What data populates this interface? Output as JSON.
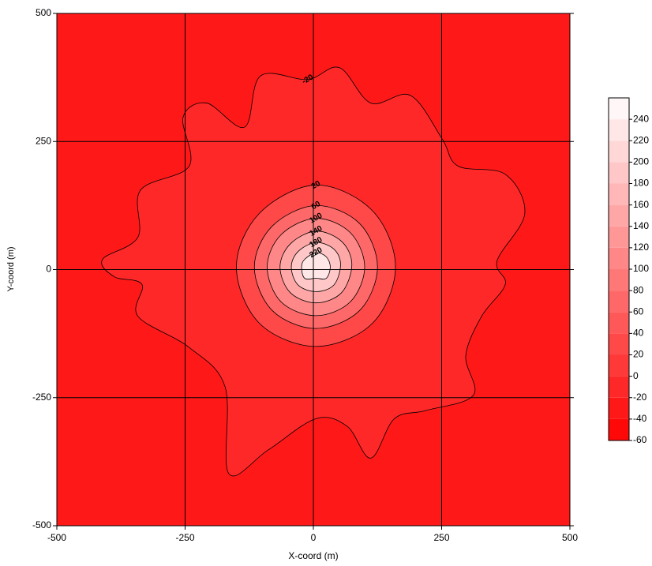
{
  "chart_data": {
    "type": "contour",
    "xlabel": "X-coord (m)",
    "ylabel": "Y-coord (m)",
    "xlim": [
      -500,
      500
    ],
    "ylim": [
      -500,
      500
    ],
    "xticks": [
      -500,
      -250,
      0,
      250,
      500
    ],
    "yticks": [
      -500,
      -250,
      0,
      250,
      500
    ],
    "grid": true,
    "colormap": [
      "#ff0000",
      "#ffffff"
    ],
    "clim": [
      -60,
      260
    ],
    "levels": [
      -60,
      -40,
      -20,
      0,
      20,
      40,
      60,
      80,
      100,
      120,
      140,
      160,
      180,
      200,
      220,
      240
    ],
    "background_level": -40,
    "contours": [
      {
        "level": -20,
        "x": [
          -411,
          -342,
          -337,
          -242,
          -254,
          -208,
          -134,
          -103,
          -11,
          51,
          112,
          189,
          251,
          282,
          374,
          412,
          358,
          374,
          328,
          297,
          312,
          220,
          158,
          112,
          66,
          5,
          -88,
          -165,
          -172,
          -242,
          -342,
          -334,
          -388
        ],
        "y": [
          20,
          63,
          155,
          202,
          297,
          325,
          278,
          378,
          371,
          394,
          325,
          340,
          255,
          202,
          186,
          109,
          17,
          -29,
          -91,
          -168,
          -245,
          -275,
          -291,
          -368,
          -306,
          -291,
          -352,
          -398,
          -229,
          -152,
          -91,
          -29,
          -14
        ]
      },
      {
        "level": 20,
        "x": [
          160,
          115,
          5,
          -105,
          -150,
          -105,
          5,
          115
        ],
        "y": [
          5,
          115,
          165,
          110,
          5,
          -105,
          -150,
          -105
        ]
      },
      {
        "level": 60,
        "x": [
          125,
          90,
          5,
          -80,
          -115,
          -80,
          5,
          90
        ],
        "y": [
          5,
          90,
          125,
          85,
          5,
          -80,
          -115,
          -80
        ]
      },
      {
        "level": 100,
        "x": [
          100,
          72,
          5,
          -63,
          -90,
          -63,
          5,
          72
        ],
        "y": [
          5,
          72,
          100,
          68,
          5,
          -63,
          -90,
          -63
        ]
      },
      {
        "level": 140,
        "x": [
          75,
          55,
          5,
          -45,
          -65,
          -45,
          5,
          55
        ],
        "y": [
          10,
          55,
          75,
          50,
          5,
          -45,
          -65,
          -45
        ]
      },
      {
        "level": 180,
        "x": [
          53,
          40,
          5,
          -30,
          -43,
          -30,
          5,
          40
        ],
        "y": [
          10,
          40,
          53,
          35,
          5,
          -30,
          -43,
          -30
        ]
      },
      {
        "level": 220,
        "x": [
          33,
          25,
          5,
          -17,
          -23,
          -17,
          5,
          25
        ],
        "y": [
          5,
          25,
          33,
          20,
          5,
          -17,
          -17,
          -17
        ]
      }
    ]
  }
}
